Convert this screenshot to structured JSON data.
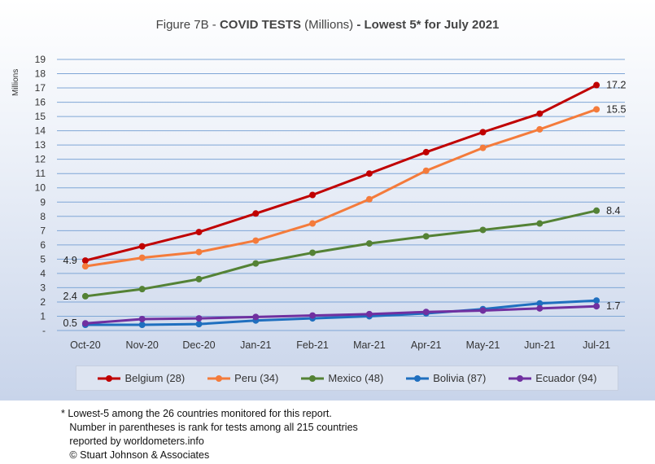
{
  "title": {
    "prefix": "Figure 7B - ",
    "bold1": "COVID TESTS",
    "middle": " (Millions) ",
    "bold2": "- Lowest 5* for July 2021"
  },
  "footnote": [
    "* Lowest-5 among the 26 countries monitored for this report.",
    "   Number in parentheses is rank for tests among all 215 countries",
    "   reported by worldometers.info",
    "   © Stuart Johnson & Associates"
  ],
  "chart_data": {
    "type": "line",
    "title": "Figure 7B - COVID TESTS (Millions) - Lowest 5* for July 2021",
    "ylabel": "Millions",
    "xlabel": "",
    "ylim": [
      0,
      19
    ],
    "y_ticks": [
      "-",
      "1",
      "2",
      "3",
      "4",
      "5",
      "6",
      "7",
      "8",
      "9",
      "10",
      "11",
      "12",
      "13",
      "14",
      "15",
      "16",
      "17",
      "18",
      "19"
    ],
    "grid": true,
    "legend_position": "bottom",
    "categories": [
      "Oct-20",
      "Nov-20",
      "Dec-20",
      "Jan-21",
      "Feb-21",
      "Mar-21",
      "Apr-21",
      "May-21",
      "Jun-21",
      "Jul-21"
    ],
    "series": [
      {
        "name": "Belgium (28)",
        "color": "#c00000",
        "values": [
          4.9,
          5.9,
          6.9,
          8.2,
          9.5,
          11.0,
          12.5,
          13.9,
          15.2,
          17.2
        ]
      },
      {
        "name": "Peru (34)",
        "color": "#f47b3b",
        "values": [
          4.5,
          5.1,
          5.5,
          6.3,
          7.5,
          9.2,
          11.2,
          12.8,
          14.1,
          15.5
        ]
      },
      {
        "name": "Mexico (48)",
        "color": "#548235",
        "values": [
          2.4,
          2.9,
          3.6,
          4.7,
          5.45,
          6.1,
          6.6,
          7.05,
          7.5,
          8.4
        ]
      },
      {
        "name": "Bolivia (87)",
        "color": "#1f6fbf",
        "values": [
          0.4,
          0.4,
          0.45,
          0.7,
          0.85,
          1.0,
          1.2,
          1.5,
          1.9,
          2.1
        ]
      },
      {
        "name": "Ecuador (94)",
        "color": "#7030a0",
        "values": [
          0.5,
          0.8,
          0.85,
          0.95,
          1.05,
          1.15,
          1.3,
          1.4,
          1.55,
          1.7
        ]
      }
    ],
    "annotations": [
      {
        "text": "4.9",
        "series": "Belgium (28)",
        "category": "Oct-20",
        "side": "left"
      },
      {
        "text": "2.4",
        "series": "Mexico (48)",
        "category": "Oct-20",
        "side": "left"
      },
      {
        "text": "0.5",
        "series": "Ecuador (94)",
        "category": "Oct-20",
        "side": "left"
      },
      {
        "text": "17.2",
        "series": "Belgium (28)",
        "category": "Jul-21",
        "side": "right"
      },
      {
        "text": "15.5",
        "series": "Peru (34)",
        "category": "Jul-21",
        "side": "right"
      },
      {
        "text": "8.4",
        "series": "Mexico (48)",
        "category": "Jul-21",
        "side": "right"
      },
      {
        "text": "1.7",
        "series": "Ecuador (94)",
        "category": "Jul-21",
        "side": "right"
      }
    ]
  }
}
